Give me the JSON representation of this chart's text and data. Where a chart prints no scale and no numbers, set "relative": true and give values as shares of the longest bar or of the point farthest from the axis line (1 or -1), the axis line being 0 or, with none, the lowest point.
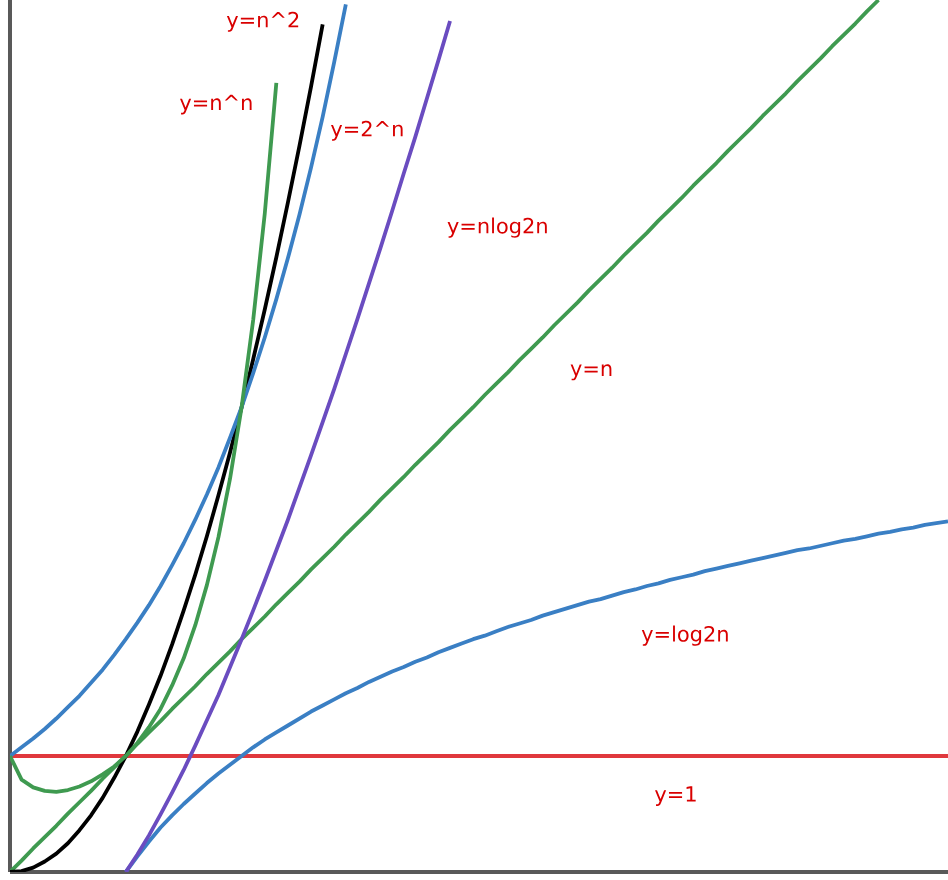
{
  "chart_data": {
    "type": "line",
    "relative": true,
    "marker": "none",
    "line_style": "solid",
    "categories": [
      null,
      null,
      null,
      null,
      null,
      null,
      null,
      null,
      null,
      null,
      null,
      null,
      null,
      null,
      null,
      null,
      null,
      null,
      null,
      null,
      null,
      null,
      null,
      null,
      null,
      null,
      null,
      null,
      null,
      null,
      null,
      null,
      null,
      null,
      null,
      null,
      null,
      null,
      null,
      null,
      null,
      null,
      null,
      null,
      null,
      null,
      null,
      null,
      null,
      null,
      null,
      null,
      null,
      null,
      null,
      null,
      null,
      null,
      null,
      null,
      null,
      null,
      null,
      null,
      null,
      null,
      null,
      null,
      null,
      null,
      null,
      null,
      null,
      null,
      null,
      null,
      null,
      null,
      null,
      null,
      null,
      null
    ],
    "series": [
      {
        "name": "y=1",
        "color": "#e0383d",
        "values": [
          0.133,
          0.133,
          0.133,
          0.133,
          0.133,
          0.133,
          0.133,
          0.133,
          0.133,
          0.133,
          0.133,
          0.133,
          0.133,
          0.133,
          0.133,
          0.133,
          0.133,
          0.133,
          0.133,
          0.133,
          0.133,
          0.133,
          0.133,
          0.133,
          0.133,
          0.133,
          0.133,
          0.133,
          0.133,
          0.133,
          0.133,
          0.133,
          0.133,
          0.133,
          0.133,
          0.133,
          0.133,
          0.133,
          0.133,
          0.133,
          0.133,
          0.133,
          0.133,
          0.133,
          0.133,
          0.133,
          0.133,
          0.133,
          0.133,
          0.133,
          0.133,
          0.133,
          0.133,
          0.133,
          0.133,
          0.133,
          0.133,
          0.133,
          0.133,
          0.133,
          0.133,
          0.133,
          0.133,
          0.133,
          0.133,
          0.133,
          0.133,
          0.133,
          0.133,
          0.133,
          0.133,
          0.133,
          0.133,
          0.133,
          0.133,
          0.133,
          0.133,
          0.133,
          0.133,
          0.133,
          0.133,
          0.133
        ]
      },
      {
        "name": "y=n",
        "color": "#3f9a50",
        "values": [
          0,
          0.013,
          0.027,
          0.04,
          0.053,
          0.067,
          0.08,
          0.093,
          0.107,
          0.12,
          0.133,
          0.147,
          0.16,
          0.173,
          0.187,
          0.2,
          0.213,
          0.227,
          0.24,
          0.253,
          0.267,
          0.28,
          0.293,
          0.307,
          0.32,
          0.333,
          0.347,
          0.36,
          0.373,
          0.387,
          0.4,
          0.413,
          0.427,
          0.44,
          0.453,
          0.467,
          0.48,
          0.493,
          0.507,
          0.52,
          0.533,
          0.547,
          0.56,
          0.573,
          0.587,
          0.6,
          0.613,
          0.627,
          0.64,
          0.653,
          0.667,
          0.68,
          0.693,
          0.707,
          0.72,
          0.733,
          0.747,
          0.76,
          0.773,
          0.787,
          0.8,
          0.813,
          0.827,
          0.84,
          0.853,
          0.867,
          0.88,
          0.893,
          0.907,
          0.92,
          0.933,
          0.947,
          0.96,
          0.973,
          0.987,
          1,
          null,
          null,
          null,
          null,
          null,
          null
        ]
      },
      {
        "name": "y=log2n",
        "color": "#3a7fc4",
        "values": [
          null,
          null,
          null,
          null,
          null,
          null,
          null,
          null,
          null,
          null,
          0,
          0.018,
          0.035,
          0.051,
          0.065,
          0.078,
          0.09,
          0.102,
          0.113,
          0.123,
          0.133,
          0.143,
          0.152,
          0.16,
          0.168,
          0.176,
          0.184,
          0.191,
          0.198,
          0.205,
          0.211,
          0.218,
          0.224,
          0.23,
          0.235,
          0.241,
          0.246,
          0.252,
          0.257,
          0.262,
          0.267,
          0.271,
          0.276,
          0.281,
          0.285,
          0.289,
          0.294,
          0.298,
          0.302,
          0.306,
          0.31,
          0.313,
          0.317,
          0.321,
          0.324,
          0.328,
          0.331,
          0.335,
          0.338,
          0.341,
          0.345,
          0.348,
          0.351,
          0.354,
          0.357,
          0.36,
          0.363,
          0.366,
          0.369,
          0.371,
          0.374,
          0.377,
          0.38,
          0.382,
          0.385,
          0.388,
          0.39,
          0.393,
          0.395,
          0.398,
          0.4,
          0.402
        ]
      },
      {
        "name": "y=nlog2n",
        "color": "#6a4cc0",
        "values": [
          null,
          null,
          null,
          null,
          null,
          null,
          null,
          null,
          null,
          null,
          0,
          0.02,
          0.042,
          0.066,
          0.091,
          0.117,
          0.145,
          0.174,
          0.203,
          0.235,
          0.267,
          0.3,
          0.334,
          0.369,
          0.404,
          0.441,
          0.478,
          0.516,
          0.554,
          0.594,
          0.634,
          0.675,
          0.716,
          0.758,
          0.801,
          0.843,
          0.887,
          0.931,
          0.976,
          null,
          null,
          null,
          null,
          null,
          null,
          null,
          null,
          null,
          null,
          null,
          null,
          null,
          null,
          null,
          null,
          null,
          null,
          null,
          null,
          null,
          null,
          null,
          null,
          null,
          null,
          null,
          null,
          null,
          null,
          null,
          null,
          null,
          null,
          null,
          null,
          null,
          null,
          null,
          null,
          null,
          null,
          null
        ]
      },
      {
        "name": "y=n^2",
        "color": "#000000",
        "values": [
          0,
          0.001,
          0.005,
          0.012,
          0.021,
          0.033,
          0.048,
          0.065,
          0.085,
          0.108,
          0.133,
          0.161,
          0.192,
          0.225,
          0.261,
          0.3,
          0.341,
          0.385,
          0.432,
          0.481,
          0.533,
          0.588,
          0.645,
          0.705,
          0.768,
          0.833,
          0.901,
          0.972,
          null,
          null,
          null,
          null,
          null,
          null,
          null,
          null,
          null,
          null,
          null,
          null,
          null,
          null,
          null,
          null,
          null,
          null,
          null,
          null,
          null,
          null,
          null,
          null,
          null,
          null,
          null,
          null,
          null,
          null,
          null,
          null,
          null,
          null,
          null,
          null,
          null,
          null,
          null,
          null,
          null,
          null,
          null,
          null,
          null,
          null,
          null,
          null,
          null,
          null,
          null,
          null,
          null,
          null
        ]
      },
      {
        "name": "y=2^n",
        "color": "#3a7fc4",
        "values": [
          0.133,
          0.143,
          0.153,
          0.164,
          0.176,
          0.189,
          0.202,
          0.217,
          0.232,
          0.249,
          0.267,
          0.286,
          0.306,
          0.328,
          0.352,
          0.377,
          0.404,
          0.433,
          0.464,
          0.498,
          0.533,
          0.572,
          0.613,
          0.657,
          0.704,
          0.754,
          0.808,
          0.866,
          0.929,
          0.995,
          null,
          null,
          null,
          null,
          null,
          null,
          null,
          null,
          null,
          null,
          null,
          null,
          null,
          null,
          null,
          null,
          null,
          null,
          null,
          null,
          null,
          null,
          null,
          null,
          null,
          null,
          null,
          null,
          null,
          null,
          null,
          null,
          null,
          null,
          null,
          null,
          null,
          null,
          null,
          null,
          null,
          null,
          null,
          null,
          null,
          null,
          null,
          null,
          null,
          null,
          null,
          null
        ]
      },
      {
        "name": "y=n^n",
        "color": "#3f9a50",
        "values": [
          0.133,
          0.106,
          0.097,
          0.093,
          0.092,
          0.094,
          0.098,
          0.104,
          0.112,
          0.121,
          0.133,
          0.148,
          0.166,
          0.187,
          0.214,
          0.245,
          0.283,
          0.329,
          0.384,
          0.451,
          0.533,
          0.633,
          0.755,
          0.905,
          null,
          null,
          null,
          null,
          null,
          null,
          null,
          null,
          null,
          null,
          null,
          null,
          null,
          null,
          null,
          null,
          null,
          null,
          null,
          null,
          null,
          null,
          null,
          null,
          null,
          null,
          null,
          null,
          null,
          null,
          null,
          null,
          null,
          null,
          null,
          null,
          null,
          null,
          null,
          null,
          null,
          null,
          null,
          null,
          null,
          null,
          null,
          null,
          null,
          null,
          null,
          null,
          null,
          null,
          null,
          null,
          null,
          null
        ]
      }
    ]
  }
}
